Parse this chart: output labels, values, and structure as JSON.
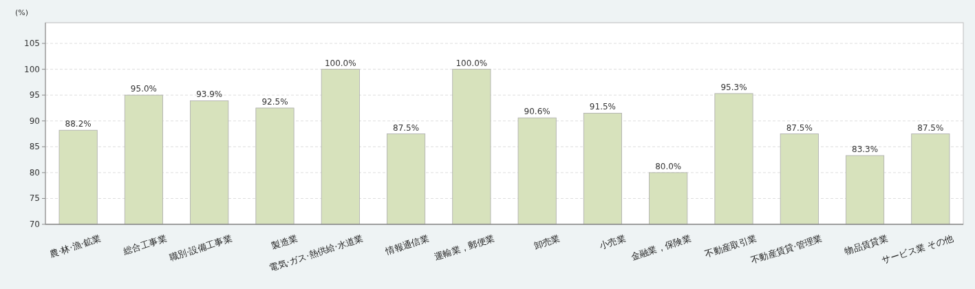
{
  "chart_data": {
    "type": "bar",
    "ylabel": "(%)",
    "categories": [
      "農·林·漁·鉱業",
      "総合工事業",
      "職別·設備工事業",
      "製造業",
      "電気·ガス·熱供給·水道業",
      "情報通信業",
      "運輸業，郵便業",
      "卸売業",
      "小売業",
      "金融業，保険業",
      "不動産取引業",
      "不動産賃貸·管理業",
      "物品賃貸業",
      "サービス業 その他"
    ],
    "values": [
      88.2,
      95.0,
      93.9,
      92.5,
      100.0,
      87.5,
      100.0,
      90.6,
      91.5,
      80.0,
      95.3,
      87.5,
      83.3,
      87.5
    ],
    "value_labels": [
      "88.2%",
      "95.0%",
      "93.9%",
      "92.5%",
      "100.0%",
      "87.5%",
      "100.0%",
      "90.6%",
      "91.5%",
      "80.0%",
      "95.3%",
      "87.5%",
      "83.3%",
      "87.5%"
    ],
    "color": "#d7e2bc",
    "ylim": [
      70,
      109
    ],
    "yticks": [
      70,
      75,
      80,
      85,
      90,
      95,
      100,
      105
    ],
    "grid": "y"
  }
}
